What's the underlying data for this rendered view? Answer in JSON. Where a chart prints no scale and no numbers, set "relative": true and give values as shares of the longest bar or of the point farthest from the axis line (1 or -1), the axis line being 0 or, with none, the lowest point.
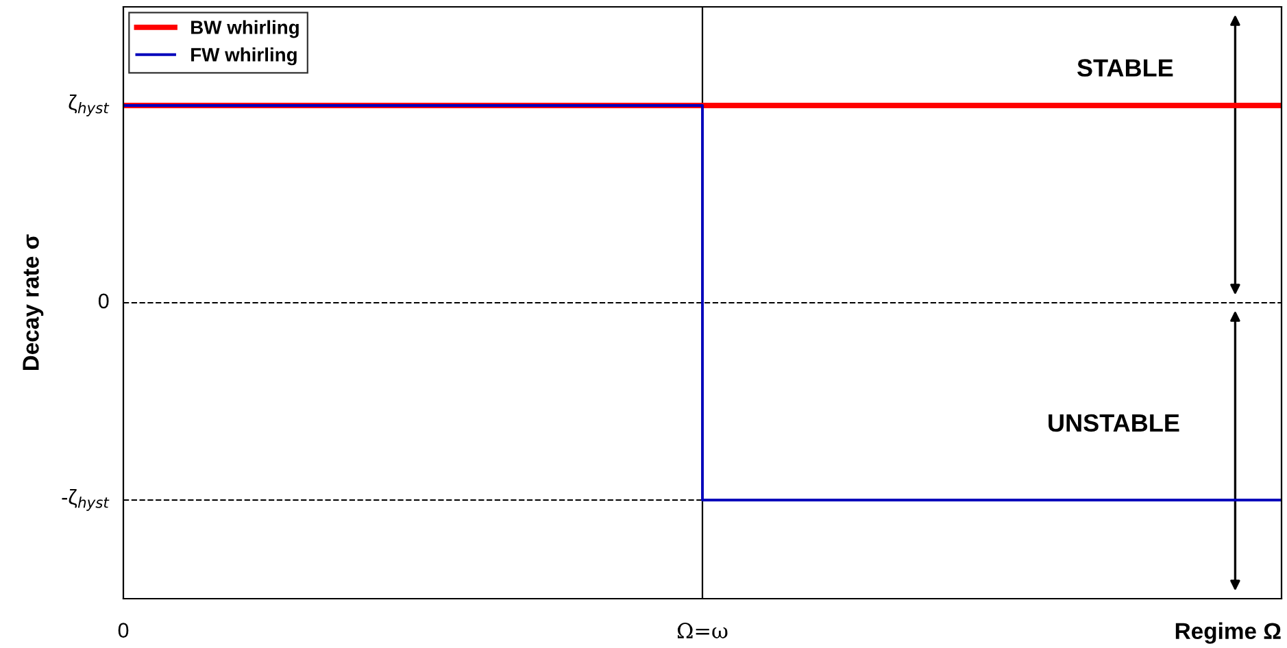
{
  "chart_data": {
    "type": "step",
    "relative": true,
    "xlabel": "Regime Ω",
    "ylabel": "Decay rate σ",
    "categories": [
      "0",
      "Ω=ω",
      null
    ],
    "series": [
      {
        "name": "BW whirling",
        "color": "#ff0000",
        "values": [
          1,
          1,
          1
        ]
      },
      {
        "name": "FW whirling",
        "color": "#0000bb",
        "values": [
          1,
          -1,
          -1
        ]
      }
    ],
    "ref_lines": [
      {
        "axis": "y",
        "value": 0,
        "label": "0",
        "color": "#000000",
        "line_style": "dashed"
      },
      {
        "axis": "y",
        "value": -1,
        "label": "-ζ$_{hyst}$",
        "color": "#000000",
        "line_style": "dashed"
      },
      {
        "axis": "x",
        "value": "Ω=ω",
        "color": "#000000",
        "line_style": "solid"
      }
    ],
    "annotations": [
      "ζ$_{hyst}$",
      "STABLE",
      "UNSTABLE"
    ],
    "legend": "top left",
    "grid": false,
    "marker": "none",
    "line_style": "solid"
  }
}
